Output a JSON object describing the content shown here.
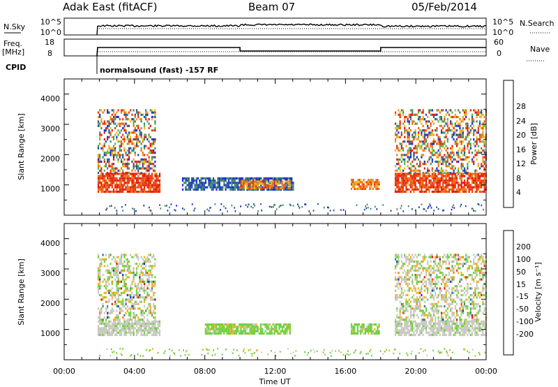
{
  "header": {
    "station": "Adak East (fitACF)",
    "beam": "Beam 07",
    "date": "05/Feb/2014"
  },
  "top_panels": {
    "nsky_label": "N.Sky",
    "nsearch_label": "N.Search",
    "nsky_ticks": [
      "10^5",
      "10^0"
    ],
    "freq_label_1": "Freq.",
    "freq_label_2": "[MHz]",
    "freq_ticks": [
      "18",
      "8"
    ],
    "nave_label": "Nave",
    "nave_ticks": [
      "60",
      "0"
    ],
    "cpid_label": "CPID",
    "cpid_text": "normalsound (fast) -157 RF"
  },
  "axes": {
    "x_ticks": [
      "00:00",
      "04:00",
      "08:00",
      "12:00",
      "16:00",
      "20:00",
      "00:00"
    ],
    "x_label": "Time UT",
    "y_ticks": [
      "1000",
      "2000",
      "3000",
      "4000"
    ],
    "y_label": "Slant Range [km]"
  },
  "colorbars": {
    "power": {
      "label": "Power [dB]",
      "ticks": [
        "4",
        "8",
        "12",
        "16",
        "20",
        "24",
        "28"
      ],
      "colors": [
        "#1a2bd8",
        "#27509a",
        "#3b8a6a",
        "#57b24a",
        "#e6c11a",
        "#f0a020",
        "#f07010",
        "#e83a10",
        "#e01a0a"
      ]
    },
    "velocity": {
      "label": "Velocity [m s⁻¹]",
      "ticks": [
        "200",
        "100",
        "50",
        "15",
        "-15",
        "-50",
        "-100",
        "-200"
      ],
      "colors": [
        "#1a2bd8",
        "#2c6ea0",
        "#3b8a6a",
        "#4ea84e",
        "#6ecf3a",
        "#c8c8c0",
        "#f5b020",
        "#f07a10",
        "#e83a10",
        "#e01a0a"
      ]
    }
  },
  "chart_data": {
    "type": "heatmap",
    "x_range_hours": [
      0,
      24
    ],
    "y_range_km": [
      0,
      4500
    ],
    "power_regions": [
      {
        "t0": 1.9,
        "t1": 5.4,
        "r0": 800,
        "r1": 1400,
        "level": "high"
      },
      {
        "t0": 1.9,
        "t1": 5.2,
        "r0": 1400,
        "r1": 3500,
        "level": "mixed"
      },
      {
        "t0": 6.7,
        "t1": 13.0,
        "r0": 850,
        "r1": 1250,
        "level": "low"
      },
      {
        "t0": 10.0,
        "t1": 12.8,
        "r0": 900,
        "r1": 1150,
        "level": "mid"
      },
      {
        "t0": 16.3,
        "t1": 17.9,
        "r0": 900,
        "r1": 1200,
        "level": "mid"
      },
      {
        "t0": 18.8,
        "t1": 24.0,
        "r0": 800,
        "r1": 1400,
        "level": "high"
      },
      {
        "t0": 18.8,
        "t1": 24.0,
        "r0": 1400,
        "r1": 3500,
        "level": "mixed"
      }
    ],
    "velocity_regions": [
      {
        "t0": 1.9,
        "t1": 5.4,
        "r0": 800,
        "r1": 1300,
        "level": "near-zero"
      },
      {
        "t0": 1.9,
        "t1": 5.2,
        "r0": 1300,
        "r1": 3500,
        "level": "mixed"
      },
      {
        "t0": 8.0,
        "t1": 12.8,
        "r0": 850,
        "r1": 1200,
        "level": "weak"
      },
      {
        "t0": 16.3,
        "t1": 17.9,
        "r0": 900,
        "r1": 1200,
        "level": "weak"
      },
      {
        "t0": 18.8,
        "t1": 24.0,
        "r0": 800,
        "r1": 1300,
        "level": "near-zero"
      },
      {
        "t0": 18.8,
        "t1": 24.0,
        "r0": 1300,
        "r1": 3500,
        "level": "mixed"
      }
    ],
    "frequency_mhz": [
      {
        "t0": 1.9,
        "t1": 10.0,
        "value": 14
      },
      {
        "t0": 10.0,
        "t1": 18.0,
        "value": 11.5
      },
      {
        "t0": 18.0,
        "t1": 24.0,
        "value": 14
      }
    ],
    "nave": 18
  }
}
